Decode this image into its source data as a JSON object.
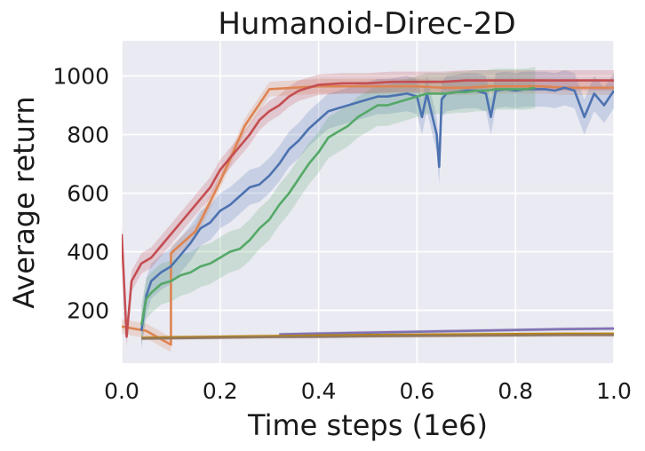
{
  "chart_data": {
    "type": "line",
    "title": "Humanoid-Direc-2D",
    "xlabel": "Time steps (1e6)",
    "ylabel": "Average return",
    "xlim": [
      0.0,
      1.0
    ],
    "ylim": [
      20,
      1120
    ],
    "xticks": [
      0.0,
      0.2,
      0.4,
      0.6,
      0.8,
      1.0
    ],
    "xtick_labels": [
      "0.0",
      "0.2",
      "0.4",
      "0.6",
      "0.8",
      "1.0"
    ],
    "yticks": [
      200,
      400,
      600,
      800,
      1000
    ],
    "ytick_labels": [
      "200",
      "400",
      "600",
      "800",
      "1000"
    ],
    "grid": true,
    "legend": "none",
    "background_color": "#eaeaf2",
    "series": [
      {
        "color": "#dd8452",
        "band": 25,
        "x": [
          0.0,
          0.05,
          0.1,
          0.1,
          0.15,
          0.2,
          0.25,
          0.3,
          0.35,
          0.4,
          0.45,
          0.5,
          0.55,
          0.6,
          0.65,
          0.7,
          0.75,
          0.8,
          0.85,
          0.9,
          0.95,
          1.0
        ],
        "y": [
          145,
          130,
          83,
          395,
          470,
          640,
          830,
          955,
          960,
          965,
          965,
          965,
          965,
          965,
          960,
          960,
          965,
          965,
          965,
          960,
          960,
          960
        ]
      },
      {
        "color": "#4c72b0",
        "band": 60,
        "x": [
          0.04,
          0.05,
          0.06,
          0.08,
          0.1,
          0.12,
          0.14,
          0.16,
          0.18,
          0.2,
          0.22,
          0.24,
          0.26,
          0.28,
          0.3,
          0.32,
          0.34,
          0.36,
          0.38,
          0.4,
          0.42,
          0.44,
          0.46,
          0.48,
          0.5,
          0.52,
          0.54,
          0.56,
          0.58,
          0.6,
          0.61,
          0.62,
          0.64,
          0.645,
          0.65,
          0.66,
          0.68,
          0.7,
          0.72,
          0.74,
          0.75,
          0.76,
          0.78,
          0.8,
          0.82,
          0.84,
          0.86,
          0.88,
          0.9,
          0.92,
          0.94,
          0.96,
          0.98,
          1.0
        ],
        "y": [
          130,
          250,
          300,
          330,
          350,
          390,
          430,
          480,
          500,
          540,
          560,
          590,
          620,
          630,
          660,
          700,
          750,
          780,
          820,
          850,
          880,
          890,
          900,
          910,
          920,
          930,
          930,
          935,
          940,
          930,
          860,
          940,
          800,
          690,
          920,
          940,
          945,
          950,
          950,
          940,
          860,
          950,
          955,
          950,
          955,
          955,
          955,
          950,
          960,
          950,
          860,
          940,
          900,
          950
        ]
      },
      {
        "color": "#55a868",
        "band": 70,
        "x": [
          0.04,
          0.05,
          0.06,
          0.08,
          0.1,
          0.12,
          0.14,
          0.16,
          0.18,
          0.2,
          0.22,
          0.24,
          0.26,
          0.28,
          0.3,
          0.32,
          0.34,
          0.36,
          0.38,
          0.4,
          0.42,
          0.44,
          0.46,
          0.48,
          0.5,
          0.52,
          0.54,
          0.56,
          0.58,
          0.6,
          0.62,
          0.64,
          0.66,
          0.68,
          0.7,
          0.72,
          0.74,
          0.76,
          0.78,
          0.8,
          0.82,
          0.84
        ],
        "y": [
          150,
          240,
          260,
          290,
          300,
          320,
          330,
          350,
          360,
          380,
          400,
          410,
          440,
          480,
          510,
          560,
          600,
          650,
          700,
          740,
          790,
          810,
          830,
          860,
          880,
          900,
          900,
          910,
          920,
          930,
          940,
          940,
          940,
          945,
          945,
          950,
          950,
          955,
          955,
          955,
          955,
          960
        ]
      },
      {
        "color": "#c44e52",
        "band": 35,
        "x": [
          0.0,
          0.01,
          0.02,
          0.04,
          0.06,
          0.08,
          0.1,
          0.12,
          0.14,
          0.16,
          0.18,
          0.2,
          0.22,
          0.24,
          0.26,
          0.28,
          0.3,
          0.32,
          0.34,
          0.36,
          0.38,
          0.4,
          0.45,
          0.5,
          0.55,
          0.6,
          0.65,
          0.7,
          0.75,
          0.8,
          0.85,
          0.9,
          0.95,
          1.0
        ],
        "y": [
          460,
          110,
          300,
          360,
          380,
          420,
          460,
          500,
          540,
          580,
          620,
          680,
          720,
          760,
          800,
          850,
          880,
          900,
          930,
          950,
          960,
          970,
          975,
          975,
          980,
          980,
          980,
          985,
          985,
          985,
          985,
          985,
          985,
          985
        ]
      },
      {
        "color": "#8172b3",
        "band": 6,
        "x": [
          0.32,
          0.4,
          0.5,
          0.6,
          0.7,
          0.8,
          0.9,
          1.0
        ],
        "y": [
          118,
          121,
          124,
          127,
          130,
          133,
          136,
          138
        ]
      },
      {
        "color": "#b8860b",
        "band": 6,
        "x": [
          0.04,
          0.1,
          0.2,
          0.3,
          0.4,
          0.5,
          0.6,
          0.7,
          0.8,
          0.9,
          1.0
        ],
        "y": [
          106,
          108,
          110,
          112,
          114,
          116,
          117,
          118,
          119,
          120,
          120
        ]
      },
      {
        "color": "#937860",
        "band": 6,
        "x": [
          0.04,
          0.1,
          0.2,
          0.3,
          0.4,
          0.5,
          0.6,
          0.7,
          0.8,
          0.9,
          1.0
        ],
        "y": [
          104,
          105,
          107,
          109,
          110,
          112,
          113,
          114,
          115,
          116,
          116
        ]
      }
    ]
  }
}
